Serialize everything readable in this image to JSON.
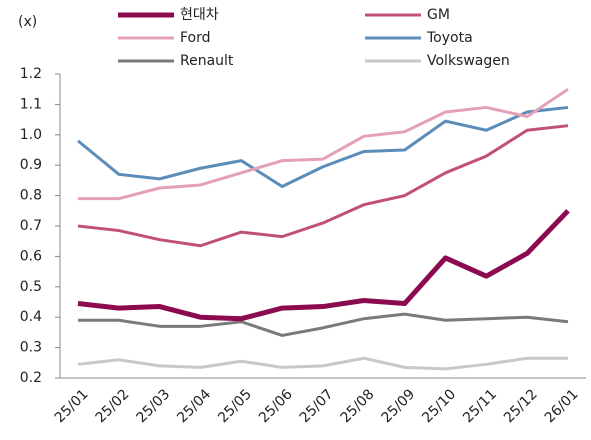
{
  "chart_data": {
    "type": "line",
    "y_unit_label": "(x)",
    "categories": [
      "25/01",
      "25/02",
      "25/03",
      "25/04",
      "25/05",
      "25/06",
      "25/07",
      "25/08",
      "25/09",
      "25/10",
      "25/11",
      "25/12",
      "26/01"
    ],
    "series": [
      {
        "name": "현대차",
        "color": "#8b0a50",
        "width": 5,
        "values": [
          0.445,
          0.43,
          0.435,
          0.4,
          0.395,
          0.43,
          0.435,
          0.455,
          0.445,
          0.595,
          0.535,
          0.61,
          0.75
        ]
      },
      {
        "name": "GM",
        "color": "#c0507a",
        "width": 3,
        "values": [
          0.7,
          0.685,
          0.655,
          0.635,
          0.68,
          0.665,
          0.71,
          0.77,
          0.8,
          0.875,
          0.93,
          1.015,
          1.03
        ]
      },
      {
        "name": "Ford",
        "color": "#e4a0b8",
        "width": 3,
        "values": [
          0.79,
          0.79,
          0.825,
          0.835,
          0.875,
          0.915,
          0.92,
          0.995,
          1.01,
          1.075,
          1.09,
          1.06,
          1.15
        ]
      },
      {
        "name": "Toyota",
        "color": "#5b8db8",
        "width": 3,
        "values": [
          0.98,
          0.87,
          0.855,
          0.89,
          0.915,
          0.83,
          0.895,
          0.945,
          0.95,
          1.045,
          1.015,
          1.075,
          1.09
        ]
      },
      {
        "name": "Renault",
        "color": "#7a7a7a",
        "width": 3,
        "values": [
          0.39,
          0.39,
          0.37,
          0.37,
          0.385,
          0.34,
          0.365,
          0.395,
          0.41,
          0.39,
          0.395,
          0.4,
          0.385
        ]
      },
      {
        "name": "Volkswagen",
        "color": "#c8c8c8",
        "width": 3,
        "values": [
          0.245,
          0.26,
          0.24,
          0.235,
          0.255,
          0.235,
          0.24,
          0.265,
          0.235,
          0.23,
          0.245,
          0.265,
          0.265
        ]
      }
    ],
    "ylim": [
      0.2,
      1.2
    ],
    "yticks": [
      0.2,
      0.3,
      0.4,
      0.5,
      0.6,
      0.7,
      0.8,
      0.9,
      {
        "value": 1,
        "label": "1.0"
      },
      1.1,
      1.2
    ],
    "grid": false,
    "legend": "top"
  }
}
